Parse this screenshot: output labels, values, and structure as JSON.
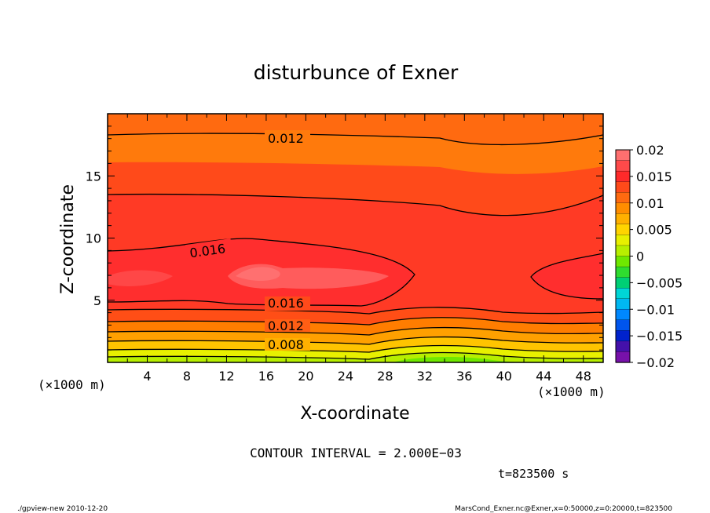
{
  "chart_data": {
    "type": "heatmap",
    "subtype": "filled-contour",
    "title": "disturbunce of Exner",
    "xlabel": "X-coordinate",
    "ylabel": "Z-coordinate",
    "x_unit_label": "(×1000 m)",
    "y_unit_label": "(×1000 m)",
    "xlim": [
      0,
      50
    ],
    "ylim": [
      0,
      20
    ],
    "x_ticks": [
      4,
      8,
      12,
      16,
      20,
      24,
      28,
      32,
      36,
      40,
      44,
      48
    ],
    "y_ticks": [
      5,
      10,
      15
    ],
    "colorbar": {
      "ticks": [
        0.02,
        0.015,
        0.01,
        0.005,
        0,
        -0.005,
        -0.01,
        -0.015,
        -0.02
      ],
      "tick_labels": [
        "0.02",
        "0.015",
        "0.01",
        "0.005",
        "0",
        "−0.005",
        "−0.01",
        "−0.015",
        "−0.02"
      ],
      "range": [
        -0.02,
        0.02
      ],
      "colors": [
        "#ff6f6f",
        "#ff4a4a",
        "#ff2a2a",
        "#ff4a1a",
        "#ff6a10",
        "#ff8d00",
        "#ffb000",
        "#ffd400",
        "#e8f000",
        "#b7ef00",
        "#6fe800",
        "#2fdc2f",
        "#00cf75",
        "#00d6d6",
        "#00b8f2",
        "#0088ff",
        "#0055ee",
        "#0022cc",
        "#4411aa",
        "#7711aa"
      ]
    },
    "contour_interval_text": "CONTOUR INTERVAL = 2.000E−03",
    "contour_labels": [
      {
        "text": "0.012",
        "value": 0.012
      },
      {
        "text": "0.016",
        "value": 0.016
      },
      {
        "text": "0.016",
        "value": 0.016
      },
      {
        "text": "0.012",
        "value": 0.012
      },
      {
        "text": "0.008",
        "value": 0.008
      }
    ],
    "profile_z": [
      0,
      0.5,
      1.5,
      2.5,
      3.5,
      5,
      7,
      9,
      12,
      14,
      16,
      18.5,
      20
    ],
    "profile_values": {
      "x_0_to_26": [
        0.002,
        0.004,
        0.007,
        0.01,
        0.0135,
        0.0162,
        0.0172,
        0.0163,
        0.015,
        0.014,
        0.013,
        0.0118,
        0.0114
      ],
      "x_32_to_40": [
        -0.001,
        0.002,
        0.005,
        0.008,
        0.011,
        0.014,
        0.0158,
        0.0155,
        0.0145,
        0.0132,
        0.0122,
        0.0112,
        0.011
      ]
    }
  },
  "time_label": "t=823500 s",
  "footer_left": "./gpview-new  2010-12-20",
  "footer_right": "MarsCond_Exner.nc@Exner,x=0:50000,z=0:20000,t=823500"
}
